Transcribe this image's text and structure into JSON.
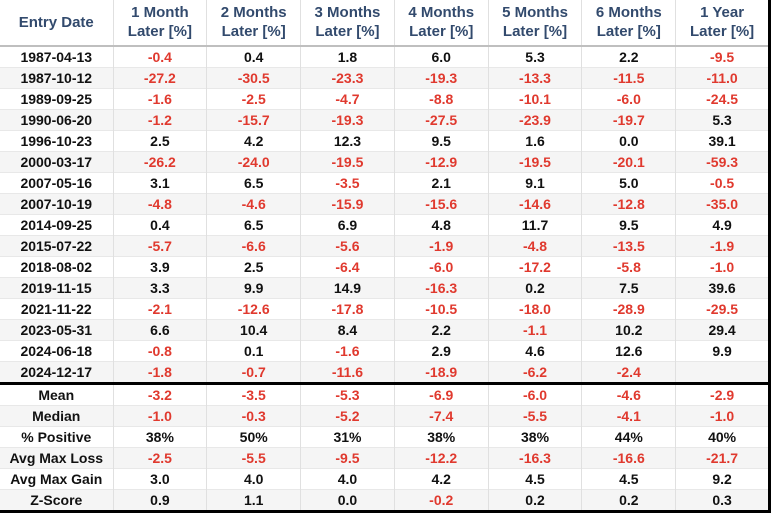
{
  "table": {
    "columns": [
      "Entry Date",
      "1 Month\nLater [%]",
      "2 Months\nLater [%]",
      "3 Months\nLater [%]",
      "4 Months\nLater [%]",
      "5 Months\nLater [%]",
      "6 Months\nLater [%]",
      "1 Year\nLater [%]"
    ],
    "rows": [
      {
        "date": "1987-04-13",
        "values": [
          "-0.4",
          "0.4",
          "1.8",
          "6.0",
          "5.3",
          "2.2",
          "-9.5"
        ]
      },
      {
        "date": "1987-10-12",
        "values": [
          "-27.2",
          "-30.5",
          "-23.3",
          "-19.3",
          "-13.3",
          "-11.5",
          "-11.0"
        ]
      },
      {
        "date": "1989-09-25",
        "values": [
          "-1.6",
          "-2.5",
          "-4.7",
          "-8.8",
          "-10.1",
          "-6.0",
          "-24.5"
        ]
      },
      {
        "date": "1990-06-20",
        "values": [
          "-1.2",
          "-15.7",
          "-19.3",
          "-27.5",
          "-23.9",
          "-19.7",
          "5.3"
        ]
      },
      {
        "date": "1996-10-23",
        "values": [
          "2.5",
          "4.2",
          "12.3",
          "9.5",
          "1.6",
          "0.0",
          "39.1"
        ]
      },
      {
        "date": "2000-03-17",
        "values": [
          "-26.2",
          "-24.0",
          "-19.5",
          "-12.9",
          "-19.5",
          "-20.1",
          "-59.3"
        ]
      },
      {
        "date": "2007-05-16",
        "values": [
          "3.1",
          "6.5",
          "-3.5",
          "2.1",
          "9.1",
          "5.0",
          "-0.5"
        ]
      },
      {
        "date": "2007-10-19",
        "values": [
          "-4.8",
          "-4.6",
          "-15.9",
          "-15.6",
          "-14.6",
          "-12.8",
          "-35.0"
        ]
      },
      {
        "date": "2014-09-25",
        "values": [
          "0.4",
          "6.5",
          "6.9",
          "4.8",
          "11.7",
          "9.5",
          "4.9"
        ]
      },
      {
        "date": "2015-07-22",
        "values": [
          "-5.7",
          "-6.6",
          "-5.6",
          "-1.9",
          "-4.8",
          "-13.5",
          "-1.9"
        ]
      },
      {
        "date": "2018-08-02",
        "values": [
          "3.9",
          "2.5",
          "-6.4",
          "-6.0",
          "-17.2",
          "-5.8",
          "-1.0"
        ]
      },
      {
        "date": "2019-11-15",
        "values": [
          "3.3",
          "9.9",
          "14.9",
          "-16.3",
          "0.2",
          "7.5",
          "39.6"
        ]
      },
      {
        "date": "2021-11-22",
        "values": [
          "-2.1",
          "-12.6",
          "-17.8",
          "-10.5",
          "-18.0",
          "-28.9",
          "-29.5"
        ]
      },
      {
        "date": "2023-05-31",
        "values": [
          "6.6",
          "10.4",
          "8.4",
          "2.2",
          "-1.1",
          "10.2",
          "29.4"
        ]
      },
      {
        "date": "2024-06-18",
        "values": [
          "-0.8",
          "0.1",
          "-1.6",
          "2.9",
          "4.6",
          "12.6",
          "9.9"
        ]
      },
      {
        "date": "2024-12-17",
        "values": [
          "-1.8",
          "-0.7",
          "-11.6",
          "-18.9",
          "-6.2",
          "-2.4",
          ""
        ]
      }
    ],
    "summary": [
      {
        "label": "Mean",
        "values": [
          "-3.2",
          "-3.5",
          "-5.3",
          "-6.9",
          "-6.0",
          "-4.6",
          "-2.9"
        ]
      },
      {
        "label": "Median",
        "values": [
          "-1.0",
          "-0.3",
          "-5.2",
          "-7.4",
          "-5.5",
          "-4.1",
          "-1.0"
        ]
      },
      {
        "label": "% Positive",
        "values": [
          "38%",
          "50%",
          "31%",
          "38%",
          "38%",
          "44%",
          "40%"
        ]
      },
      {
        "label": "Avg Max Loss",
        "values": [
          "-2.5",
          "-5.5",
          "-9.5",
          "-12.2",
          "-16.3",
          "-16.6",
          "-21.7"
        ]
      },
      {
        "label": "Avg Max Gain",
        "values": [
          "3.0",
          "4.0",
          "4.0",
          "4.2",
          "4.5",
          "4.5",
          "9.2"
        ]
      },
      {
        "label": "Z-Score",
        "values": [
          "0.9",
          "1.1",
          "0.0",
          "-0.2",
          "0.2",
          "0.2",
          "0.3"
        ]
      }
    ]
  },
  "colors": {
    "header_text": "#324a6d",
    "negative_value": "#e0392e",
    "positive_value": "#111111",
    "row_stripe": "#f5f5f5",
    "grid_line": "#e0e0e0",
    "header_underline": "#bfbfbf",
    "heavy_border": "#000000"
  },
  "chart_data": {
    "type": "table",
    "columns": [
      "Entry Date",
      "1 Month Later [%]",
      "2 Months Later [%]",
      "3 Months Later [%]",
      "4 Months Later [%]",
      "5 Months Later [%]",
      "6 Months Later [%]",
      "1 Year Later [%]"
    ],
    "rows": [
      [
        "1987-04-13",
        -0.4,
        0.4,
        1.8,
        6.0,
        5.3,
        2.2,
        -9.5
      ],
      [
        "1987-10-12",
        -27.2,
        -30.5,
        -23.3,
        -19.3,
        -13.3,
        -11.5,
        -11.0
      ],
      [
        "1989-09-25",
        -1.6,
        -2.5,
        -4.7,
        -8.8,
        -10.1,
        -6.0,
        -24.5
      ],
      [
        "1990-06-20",
        -1.2,
        -15.7,
        -19.3,
        -27.5,
        -23.9,
        -19.7,
        5.3
      ],
      [
        "1996-10-23",
        2.5,
        4.2,
        12.3,
        9.5,
        1.6,
        0.0,
        39.1
      ],
      [
        "2000-03-17",
        -26.2,
        -24.0,
        -19.5,
        -12.9,
        -19.5,
        -20.1,
        -59.3
      ],
      [
        "2007-05-16",
        3.1,
        6.5,
        -3.5,
        2.1,
        9.1,
        5.0,
        -0.5
      ],
      [
        "2007-10-19",
        -4.8,
        -4.6,
        -15.9,
        -15.6,
        -14.6,
        -12.8,
        -35.0
      ],
      [
        "2014-09-25",
        0.4,
        6.5,
        6.9,
        4.8,
        11.7,
        9.5,
        4.9
      ],
      [
        "2015-07-22",
        -5.7,
        -6.6,
        -5.6,
        -1.9,
        -4.8,
        -13.5,
        -1.9
      ],
      [
        "2018-08-02",
        3.9,
        2.5,
        -6.4,
        -6.0,
        -17.2,
        -5.8,
        -1.0
      ],
      [
        "2019-11-15",
        3.3,
        9.9,
        14.9,
        -16.3,
        0.2,
        7.5,
        39.6
      ],
      [
        "2021-11-22",
        -2.1,
        -12.6,
        -17.8,
        -10.5,
        -18.0,
        -28.9,
        -29.5
      ],
      [
        "2023-05-31",
        6.6,
        10.4,
        8.4,
        2.2,
        -1.1,
        10.2,
        29.4
      ],
      [
        "2024-06-18",
        -0.8,
        0.1,
        -1.6,
        2.9,
        4.6,
        12.6,
        9.9
      ],
      [
        "2024-12-17",
        -1.8,
        -0.7,
        -11.6,
        -18.9,
        -6.2,
        -2.4,
        null
      ]
    ],
    "summary_rows": [
      [
        "Mean",
        -3.2,
        -3.5,
        -5.3,
        -6.9,
        -6.0,
        -4.6,
        -2.9
      ],
      [
        "Median",
        -1.0,
        -0.3,
        -5.2,
        -7.4,
        -5.5,
        -4.1,
        -1.0
      ],
      [
        "% Positive",
        "38%",
        "50%",
        "31%",
        "38%",
        "38%",
        "44%",
        "40%"
      ],
      [
        "Avg Max Loss",
        -2.5,
        -5.5,
        -9.5,
        -12.2,
        -16.3,
        -16.6,
        -21.7
      ],
      [
        "Avg Max Gain",
        3.0,
        4.0,
        4.0,
        4.2,
        4.5,
        4.5,
        9.2
      ],
      [
        "Z-Score",
        0.9,
        1.1,
        0.0,
        -0.2,
        0.2,
        0.2,
        0.3
      ]
    ]
  }
}
